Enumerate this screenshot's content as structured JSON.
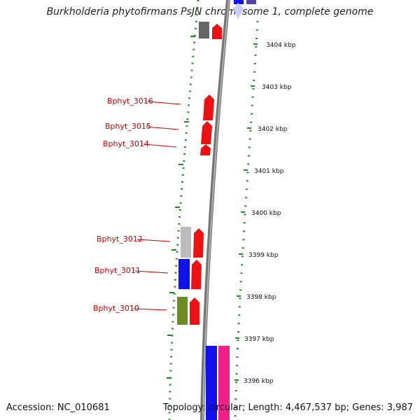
{
  "header": {
    "title": "Burkholderia phytofirmans PsJN chromosome 1, complete genome"
  },
  "footer": {
    "accession": "Accession: NC_010681",
    "summary": "Topology: circular; Length: 4,467,537 bp; Genes: 3,987"
  },
  "scale": {
    "unit": "kbp",
    "ticks": [
      "3404 kbp",
      "3403 kbp",
      "3402 kbp",
      "3401 kbp",
      "3400 kbp",
      "3399 kbp",
      "3398 kbp",
      "3397 kbp",
      "3396 kbp"
    ]
  },
  "gene_labels": [
    "Bphyt_3016",
    "Bphyt_3015",
    "Bphyt_3014",
    "Bphyt_3012",
    "Bphyt_3011",
    "Bphyt_3010"
  ],
  "colors": {
    "label": "#cc0000",
    "gene_red": "#ee1111",
    "gene_blue": "#1111ee",
    "gene_grey": "#bbbbbb",
    "gene_dark_grey": "#666666",
    "gene_olive": "#6b8e23",
    "gene_magenta": "#ee2288",
    "gene_purple": "#5544aa",
    "track_dots": "#228b22",
    "backbone": "#777777"
  }
}
